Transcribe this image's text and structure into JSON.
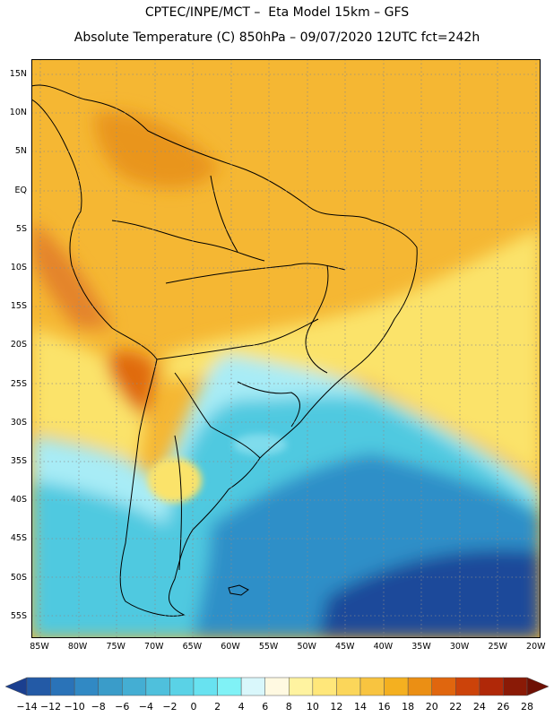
{
  "header": {
    "line1": "CPTEC/INPE/MCT –  Eta Model 15km – GFS",
    "line2": "Absolute Temperature (C) 850hPa – 09/07/2020 12UTC fct=242h"
  },
  "map": {
    "lat_labels": [
      "15N",
      "10N",
      "5N",
      "EQ",
      "5S",
      "10S",
      "15S",
      "20S",
      "25S",
      "30S",
      "35S",
      "40S",
      "45S",
      "50S",
      "55S"
    ],
    "lon_labels": [
      "85W",
      "80W",
      "75W",
      "70W",
      "65W",
      "60W",
      "55W",
      "50W",
      "45W",
      "40W",
      "35W",
      "30W",
      "25W",
      "20W"
    ],
    "colors": {
      "ocean_warm": "#f5b733",
      "land": "#f0a820",
      "hot": "#e06a10",
      "mild": "#fbe36a",
      "cool": "#a8ecf6",
      "cold": "#4fc9e0",
      "colder": "#2f8fc8",
      "coldest": "#1d4a9a",
      "border": "#000000"
    }
  },
  "colorbar": {
    "labels": [
      "-14",
      "-12",
      "-10",
      "-8",
      "-6",
      "-4",
      "-2",
      "0",
      "2",
      "4",
      "6",
      "8",
      "10",
      "12",
      "14",
      "16",
      "18",
      "20",
      "22",
      "24",
      "26",
      "28"
    ],
    "colors": [
      "#1b3f8f",
      "#235aa6",
      "#2a73b8",
      "#3189c4",
      "#3a9cc9",
      "#44aed3",
      "#4fc0dc",
      "#5ad2e6",
      "#68e2f0",
      "#80f2f6",
      "#d9f7fb",
      "#fff9e1",
      "#fff3a0",
      "#ffe77a",
      "#fbd65a",
      "#f8c440",
      "#f4b020",
      "#eb8f14",
      "#e0660e",
      "#cc430a",
      "#b02808",
      "#8a1a06",
      "#6e1004"
    ]
  }
}
